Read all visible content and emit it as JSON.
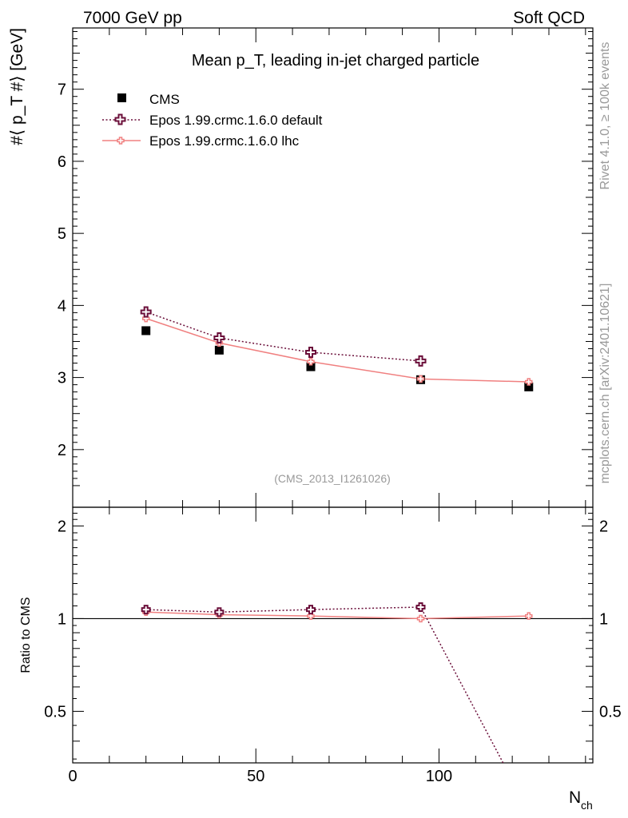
{
  "header": {
    "left": "7000 GeV pp",
    "right": "Soft QCD"
  },
  "side_labels": {
    "rivet": "Rivet 4.1.0, ≥ 100k events",
    "mcplots": "mcplots.cern.ch [arXiv:2401.10621]"
  },
  "colors": {
    "cms": "#000000",
    "default": "#6b0f3a",
    "lhc": "#f08080",
    "watermark": "#999999"
  },
  "chart_data": [
    {
      "type": "scatter",
      "title": "Mean p_T, leading in-jet charged particle",
      "ylabel": "#⟨ p_T #⟩ [GeV]",
      "analysis_tag": "(CMS_2013_I1261026)",
      "xlim": [
        0,
        142
      ],
      "ylim": [
        1.2,
        7.85
      ],
      "yticks": [
        2,
        3,
        4,
        5,
        6,
        7
      ],
      "legend_position": "top-left",
      "legend": [
        {
          "label": "CMS",
          "series": "cms"
        },
        {
          "label": "Epos 1.99.crmc.1.6.0 default",
          "series": "default"
        },
        {
          "label": "Epos 1.99.crmc.1.6.0 lhc",
          "series": "lhc"
        }
      ],
      "series": [
        {
          "id": "cms",
          "name": "CMS",
          "x": [
            20,
            40,
            65,
            95,
            124.5
          ],
          "y": [
            3.65,
            3.38,
            3.15,
            2.97,
            2.87
          ]
        },
        {
          "id": "default",
          "name": "Epos 1.99.crmc.1.6.0 default",
          "x": [
            20,
            40,
            65,
            95
          ],
          "y": [
            3.91,
            3.55,
            3.35,
            3.23
          ]
        },
        {
          "id": "lhc",
          "name": "Epos 1.99.crmc.1.6.0 lhc",
          "x": [
            20,
            40,
            65,
            95,
            124.5
          ],
          "y": [
            3.82,
            3.48,
            3.22,
            2.98,
            2.94
          ]
        }
      ]
    },
    {
      "type": "line",
      "ylabel": "Ratio to CMS",
      "xlabel": "N_ch",
      "xlim": [
        0,
        142
      ],
      "ylim": [
        0.34,
        2.3
      ],
      "yticks": [
        0.5,
        1,
        2
      ],
      "xticks": [
        0,
        50,
        100
      ],
      "reference_line": 1,
      "series": [
        {
          "id": "default",
          "name": "Epos 1.99.crmc.1.6.0 default",
          "x": [
            20,
            40,
            65,
            95,
            117.5
          ],
          "y": [
            1.07,
            1.05,
            1.07,
            1.09,
            0.34
          ]
        },
        {
          "id": "lhc",
          "name": "Epos 1.99.crmc.1.6.0 lhc",
          "x": [
            20,
            40,
            65,
            95,
            124.5
          ],
          "y": [
            1.05,
            1.03,
            1.02,
            1.0,
            1.02
          ]
        }
      ]
    }
  ]
}
